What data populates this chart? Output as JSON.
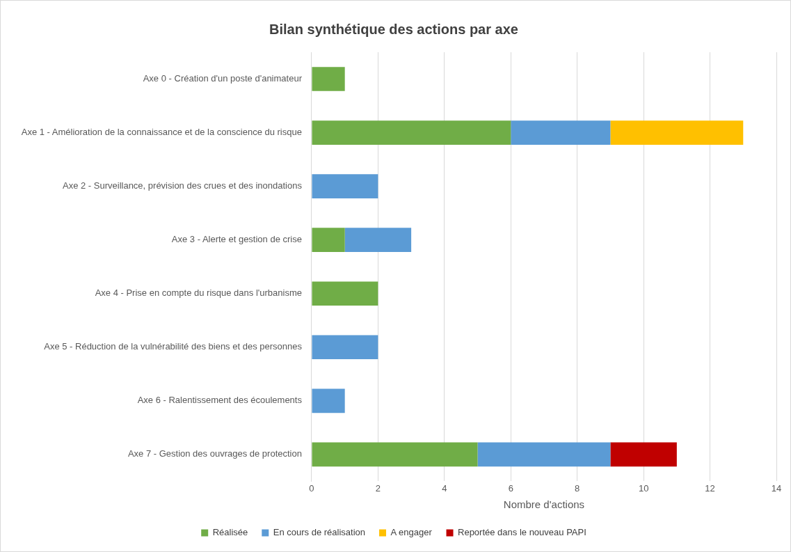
{
  "chart_data": {
    "type": "bar",
    "orientation": "horizontal",
    "stacked": true,
    "title": "Bilan synthétique des actions par axe",
    "xlabel": "Nombre d'actions",
    "categories": [
      "Axe 0 - Création d'un poste d'animateur",
      "Axe 1 - Amélioration de la connaissance et de la conscience du risque",
      "Axe 2 - Surveillance, prévision des crues et des inondations",
      "Axe 3 - Alerte et gestion de crise",
      "Axe 4 - Prise en compte du risque dans l'urbanisme",
      "Axe 5 - Réduction de la vulnérabilité des biens et des personnes",
      "Axe 6 - Ralentissement des écoulements",
      "Axe 7 - Gestion des ouvrages de protection"
    ],
    "series": [
      {
        "name": "Réalisée",
        "color": "#70ad47",
        "values": [
          1,
          6,
          0,
          1,
          2,
          0,
          0,
          5
        ]
      },
      {
        "name": "En cours de réalisation",
        "color": "#5b9bd5",
        "values": [
          0,
          3,
          2,
          2,
          0,
          2,
          1,
          4
        ]
      },
      {
        "name": "A engager",
        "color": "#ffc000",
        "values": [
          0,
          4,
          0,
          0,
          0,
          0,
          0,
          0
        ]
      },
      {
        "name": "Reportée dans le nouveau PAPI",
        "color": "#c00000",
        "values": [
          0,
          0,
          0,
          0,
          0,
          0,
          0,
          2
        ]
      }
    ],
    "xlim": [
      0,
      14
    ],
    "xticks": [
      0,
      2,
      4,
      6,
      8,
      10,
      12,
      14
    ],
    "grid": "x",
    "legend": "bottom"
  }
}
